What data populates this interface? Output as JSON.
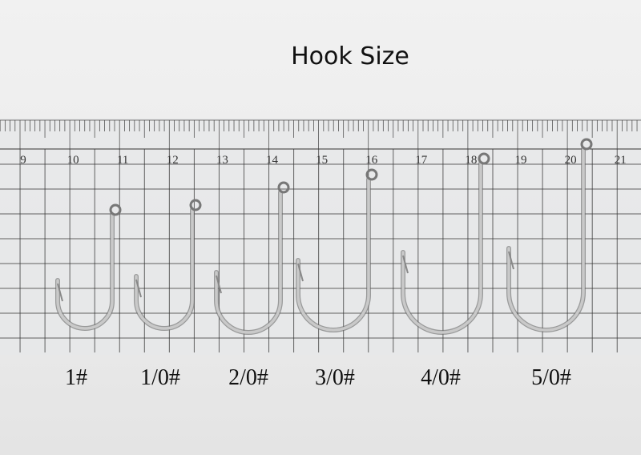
{
  "title": "Hook Size",
  "ruler": {
    "labels": [
      9,
      10,
      11,
      12,
      13,
      14,
      15,
      16,
      17,
      18,
      19,
      20,
      21
    ]
  },
  "hooks": {
    "labels": [
      "1#",
      "1/0#",
      "2/0#",
      "3/0#",
      "4/0#",
      "5/0#"
    ]
  }
}
